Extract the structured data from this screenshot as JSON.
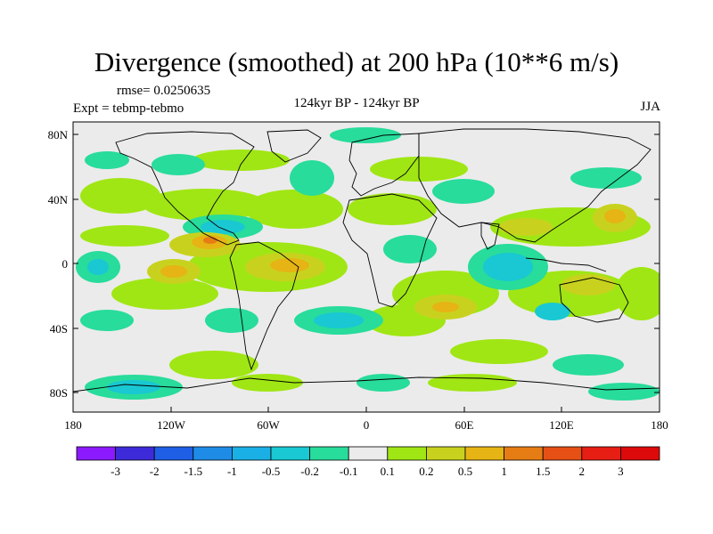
{
  "title": "Divergence (smoothed) at 200 hPa (10**6 m/s)",
  "rmse_label": "rmse= 0.0250635",
  "experiment_label": "Expt = tebmp-tebmo",
  "period_label": "124kyr BP - 124kyr BP",
  "season_label": "JJA",
  "lat_ticks": [
    "80N",
    "40N",
    "0",
    "40S",
    "80S"
  ],
  "lon_ticks": [
    "180",
    "120W",
    "60W",
    "0",
    "60E",
    "120E",
    "180"
  ],
  "colorbar": {
    "labels": [
      "-3",
      "-2",
      "-1.5",
      "-1",
      "-0.5",
      "-0.2",
      "-0.1",
      "0.1",
      "0.2",
      "0.5",
      "1",
      "1.5",
      "2",
      "3"
    ],
    "colors": [
      "#8c1aff",
      "#3d2bd9",
      "#1f5fe6",
      "#1e8ce6",
      "#1ab0e6",
      "#19c8d2",
      "#28dc9b",
      "#ebebeb",
      "#a0e614",
      "#c8d21e",
      "#e6b414",
      "#e67d14",
      "#e65014",
      "#e61e14",
      "#dc0a0a"
    ]
  },
  "colors": {
    "background": "#ffffff",
    "map_fill": "#ebebeb",
    "coast": "#000000"
  }
}
